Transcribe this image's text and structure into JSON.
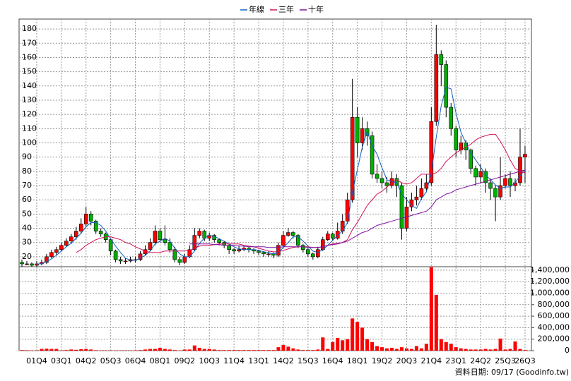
{
  "chart_data": [
    {
      "type": "candlestick",
      "ylim": [
        13,
        187
      ],
      "yticks": [
        20,
        30,
        40,
        50,
        60,
        70,
        80,
        90,
        100,
        110,
        120,
        130,
        140,
        150,
        160,
        170,
        180
      ],
      "grid": true,
      "legend": "top",
      "up_color": "#ff0000",
      "down_color": "#00b000",
      "candles": [
        [
          16,
          18,
          13,
          15
        ],
        [
          15,
          17,
          14,
          15
        ],
        [
          15,
          16,
          13,
          14
        ],
        [
          14,
          17,
          13,
          15
        ],
        [
          15,
          18,
          14,
          16
        ],
        [
          16,
          22,
          15,
          20
        ],
        [
          20,
          25,
          19,
          23
        ],
        [
          23,
          27,
          21,
          25
        ],
        [
          25,
          30,
          24,
          28
        ],
        [
          28,
          33,
          27,
          31
        ],
        [
          31,
          36,
          29,
          34
        ],
        [
          34,
          41,
          32,
          38
        ],
        [
          38,
          47,
          36,
          43
        ],
        [
          43,
          55,
          41,
          50
        ],
        [
          50,
          52,
          42,
          45
        ],
        [
          45,
          46,
          36,
          38
        ],
        [
          38,
          40,
          34,
          36
        ],
        [
          36,
          37,
          30,
          32
        ],
        [
          32,
          33,
          21,
          24
        ],
        [
          24,
          25,
          16,
          18
        ],
        [
          18,
          20,
          15,
          17
        ],
        [
          17,
          19,
          15,
          17
        ],
        [
          17,
          20,
          16,
          18
        ],
        [
          18,
          20,
          16,
          18
        ],
        [
          18,
          24,
          17,
          22
        ],
        [
          22,
          28,
          21,
          25
        ],
        [
          25,
          33,
          24,
          30
        ],
        [
          30,
          42,
          28,
          38
        ],
        [
          38,
          40,
          30,
          32
        ],
        [
          32,
          42,
          28,
          30
        ],
        [
          30,
          33,
          23,
          25
        ],
        [
          25,
          27,
          16,
          18
        ],
        [
          18,
          20,
          14,
          16
        ],
        [
          16,
          22,
          15,
          20
        ],
        [
          20,
          28,
          19,
          25
        ],
        [
          25,
          40,
          24,
          35
        ],
        [
          35,
          40,
          33,
          38
        ],
        [
          38,
          39,
          31,
          33
        ],
        [
          33,
          37,
          31,
          35
        ],
        [
          35,
          36,
          30,
          32
        ],
        [
          32,
          33,
          28,
          30
        ],
        [
          30,
          31,
          26,
          28
        ],
        [
          28,
          29,
          22,
          25
        ],
        [
          25,
          26,
          22,
          24
        ],
        [
          24,
          28,
          23,
          25
        ],
        [
          25,
          28,
          24,
          26
        ],
        [
          26,
          27,
          23,
          25
        ],
        [
          25,
          26,
          22,
          24
        ],
        [
          24,
          25,
          21,
          23
        ],
        [
          23,
          24,
          20,
          22
        ],
        [
          22,
          24,
          20,
          22
        ],
        [
          22,
          23,
          19,
          21
        ],
        [
          21,
          30,
          20,
          28
        ],
        [
          28,
          38,
          27,
          35
        ],
        [
          35,
          40,
          34,
          37
        ],
        [
          37,
          38,
          33,
          35
        ],
        [
          35,
          36,
          26,
          28
        ],
        [
          28,
          29,
          23,
          25
        ],
        [
          25,
          26,
          20,
          22
        ],
        [
          22,
          23,
          18,
          20
        ],
        [
          20,
          27,
          19,
          25
        ],
        [
          25,
          34,
          24,
          32
        ],
        [
          32,
          38,
          31,
          36
        ],
        [
          36,
          37,
          31,
          33
        ],
        [
          33,
          44,
          32,
          38
        ],
        [
          38,
          50,
          36,
          45
        ],
        [
          45,
          65,
          43,
          60
        ],
        [
          60,
          145,
          58,
          118
        ],
        [
          118,
          125,
          90,
          100
        ],
        [
          100,
          118,
          95,
          110
        ],
        [
          110,
          115,
          98,
          105
        ],
        [
          105,
          108,
          75,
          78
        ],
        [
          78,
          85,
          72,
          75
        ],
        [
          75,
          80,
          68,
          72
        ],
        [
          72,
          76,
          65,
          70
        ],
        [
          70,
          80,
          68,
          75
        ],
        [
          75,
          78,
          62,
          70
        ],
        [
          70,
          72,
          32,
          40
        ],
        [
          40,
          62,
          38,
          55
        ],
        [
          55,
          65,
          52,
          60
        ],
        [
          60,
          70,
          56,
          62
        ],
        [
          62,
          75,
          60,
          68
        ],
        [
          68,
          78,
          66,
          72
        ],
        [
          72,
          125,
          70,
          115
        ],
        [
          115,
          183,
          112,
          162
        ],
        [
          162,
          165,
          140,
          155
        ],
        [
          155,
          158,
          118,
          125
        ],
        [
          125,
          128,
          105,
          110
        ],
        [
          110,
          112,
          90,
          95
        ],
        [
          95,
          105,
          92,
          100
        ],
        [
          100,
          102,
          88,
          95
        ],
        [
          95,
          96,
          78,
          82
        ],
        [
          82,
          84,
          70,
          76
        ],
        [
          76,
          85,
          72,
          80
        ],
        [
          80,
          82,
          65,
          72
        ],
        [
          72,
          75,
          60,
          68
        ],
        [
          68,
          70,
          45,
          62
        ],
        [
          62,
          90,
          60,
          70
        ],
        [
          70,
          78,
          68,
          75
        ],
        [
          75,
          80,
          62,
          70
        ],
        [
          70,
          75,
          66,
          72
        ],
        [
          72,
          110,
          70,
          90
        ],
        [
          90,
          98,
          72,
          92
        ]
      ],
      "series": [
        {
          "name": "年線",
          "color": "#1060c0",
          "values": [
            null,
            null,
            null,
            15,
            15,
            16.5,
            18.5,
            21,
            24,
            27,
            29.5,
            33,
            36.5,
            41,
            44,
            44,
            42,
            38,
            32.5,
            27.5,
            23,
            19,
            17.5,
            17.5,
            19,
            21,
            24,
            29,
            31,
            33,
            31,
            26,
            22,
            20,
            20,
            24,
            29.5,
            33,
            35,
            34.5,
            32.5,
            31,
            29,
            27,
            25.5,
            25,
            25,
            25,
            24.5,
            23.5,
            23,
            22,
            23,
            26.5,
            30,
            34,
            34,
            31,
            27.5,
            24,
            23,
            25,
            28,
            31.5,
            35,
            38,
            44,
            65,
            81,
            97,
            108,
            98,
            92,
            82.5,
            74,
            73,
            72,
            64,
            60,
            56,
            54,
            61,
            65.5,
            79,
            104,
            126,
            139,
            138,
            121,
            107.5,
            100,
            93,
            88,
            83,
            77.5,
            74,
            70.5,
            68,
            69,
            69,
            72,
            77,
            81
          ]
        },
        {
          "name": "三年",
          "color": "#d0105a",
          "values": [
            null,
            null,
            null,
            null,
            null,
            null,
            null,
            null,
            null,
            null,
            null,
            23,
            25,
            28,
            30,
            32,
            33,
            34,
            34,
            33,
            32,
            30,
            29,
            27,
            25.5,
            24,
            23,
            23,
            23,
            24,
            24,
            24,
            24,
            24,
            24.5,
            26,
            27.5,
            28,
            28,
            28.5,
            29,
            29,
            29,
            29,
            29,
            28,
            27.5,
            27,
            26,
            25,
            24,
            23.5,
            23.5,
            24.5,
            25.5,
            26.5,
            27,
            27,
            27,
            26.5,
            26.5,
            27,
            28,
            29,
            29.5,
            30,
            32,
            39,
            44,
            50,
            56,
            60,
            64,
            66,
            69,
            72,
            74,
            72,
            71,
            72,
            75,
            78,
            78,
            78,
            79,
            82,
            87,
            90,
            93,
            95,
            97,
            99,
            102,
            104,
            105,
            106,
            106,
            101,
            95,
            88,
            82,
            80,
            79
          ]
        },
        {
          "name": "十年",
          "color": "#8010a0",
          "values": [
            null,
            null,
            null,
            null,
            null,
            null,
            null,
            null,
            null,
            null,
            null,
            null,
            null,
            null,
            null,
            null,
            null,
            null,
            null,
            null,
            null,
            null,
            null,
            null,
            null,
            null,
            null,
            null,
            null,
            null,
            null,
            null,
            null,
            null,
            29,
            29,
            29,
            29,
            29,
            28.5,
            28.5,
            28,
            28,
            28,
            27.5,
            27.5,
            27,
            27,
            27,
            27,
            26.5,
            26.5,
            26.5,
            27,
            27,
            27,
            27,
            27,
            26.5,
            26.5,
            26.5,
            27,
            28,
            28.5,
            29,
            30,
            31,
            33,
            35,
            37,
            38,
            40,
            42,
            43,
            44,
            45,
            46,
            47,
            48,
            49,
            50,
            51,
            52,
            55,
            60,
            62,
            64,
            65,
            67,
            68,
            69,
            70,
            71,
            72,
            73,
            74,
            75,
            76,
            77,
            78,
            79,
            80,
            81
          ]
        }
      ]
    },
    {
      "type": "bar",
      "color": "#ff0000",
      "ylim": [
        0,
        1460000
      ],
      "yticks": [
        0,
        {
          "value": 200000,
          "label": "200,000"
        },
        {
          "value": 400000,
          "label": "400,000"
        },
        {
          "value": 600000,
          "label": "600,000"
        },
        {
          "value": 800000,
          "label": "800,000"
        },
        {
          "value": 1000000,
          "label": "1,000,000"
        },
        {
          "value": 1200000,
          "label": "1,200,000"
        },
        {
          "value": 1400000,
          "label": "1,400,000"
        }
      ],
      "categories": [
        null,
        null,
        null,
        "01Q4",
        null,
        null,
        null,
        null,
        "03Q1",
        null,
        null,
        null,
        null,
        "04Q2",
        null,
        null,
        null,
        null,
        "05Q3",
        null,
        null,
        null,
        null,
        "06Q4",
        null,
        null,
        null,
        null,
        "08Q1",
        null,
        null,
        null,
        null,
        "09Q2",
        null,
        null,
        null,
        null,
        "10Q3",
        null,
        null,
        null,
        null,
        "11Q4",
        null,
        null,
        null,
        null,
        "13Q1",
        null,
        null,
        null,
        null,
        "14Q2",
        null,
        null,
        null,
        null,
        "15Q3",
        null,
        null,
        null,
        null,
        "16Q4",
        null,
        null,
        null,
        null,
        "18Q1",
        null,
        null,
        null,
        null,
        "19Q2",
        null,
        null,
        null,
        null,
        "20Q3",
        null,
        null,
        null,
        null,
        "21Q4",
        null,
        null,
        null,
        null,
        "23Q1",
        null,
        null,
        null,
        null,
        "24Q2",
        null,
        null,
        null,
        null,
        "25Q3",
        null,
        null,
        null,
        "26Q3"
      ],
      "values": [
        10000,
        8000,
        5000,
        5000,
        30000,
        35000,
        30000,
        30000,
        5000,
        10000,
        20000,
        15000,
        25000,
        30000,
        20000,
        8000,
        5000,
        5000,
        5000,
        5000,
        5000,
        5000,
        5000,
        5000,
        10000,
        20000,
        30000,
        30000,
        50000,
        30000,
        20000,
        10000,
        5000,
        20000,
        20000,
        90000,
        50000,
        30000,
        30000,
        20000,
        10000,
        10000,
        10000,
        10000,
        10000,
        10000,
        10000,
        10000,
        10000,
        10000,
        10000,
        10000,
        60000,
        100000,
        70000,
        40000,
        20000,
        10000,
        10000,
        10000,
        20000,
        230000,
        30000,
        150000,
        220000,
        180000,
        200000,
        560000,
        500000,
        400000,
        200000,
        150000,
        80000,
        60000,
        40000,
        50000,
        30000,
        60000,
        40000,
        30000,
        80000,
        40000,
        120000,
        1450000,
        970000,
        200000,
        150000,
        120000,
        60000,
        40000,
        30000,
        20000,
        20000,
        20000,
        30000,
        20000,
        30000,
        210000,
        20000,
        30000,
        160000,
        30000,
        10000
      ],
      "note": "資料日期: 09/17 (Goodinfo.tw)"
    }
  ]
}
